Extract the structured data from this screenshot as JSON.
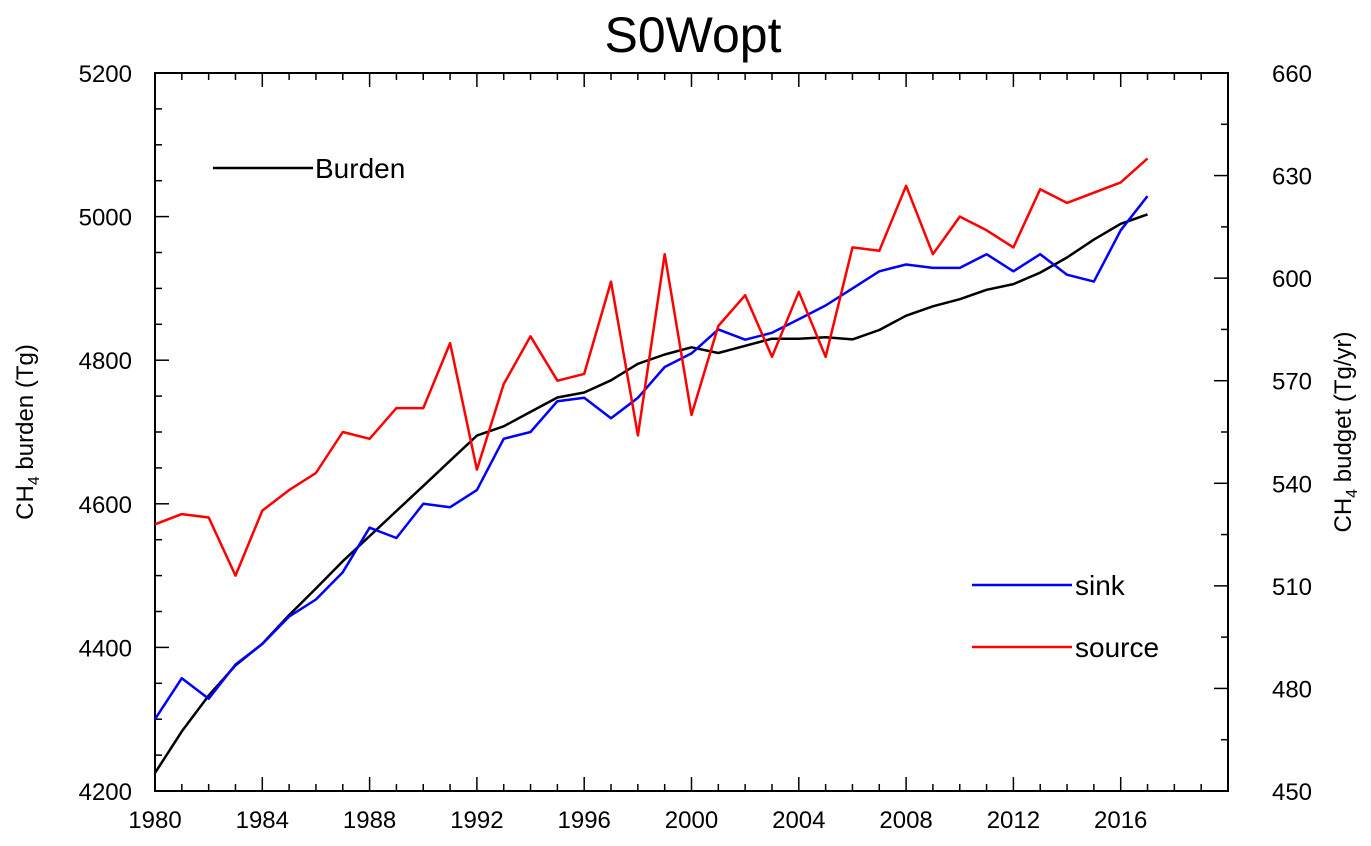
{
  "chart_data": {
    "type": "line",
    "title": "S0Wopt",
    "ylabel_left": {
      "base": "CH",
      "sub": "4",
      "rest": " burden (Tg)"
    },
    "ylabel_right": {
      "base": "CH",
      "sub": "4",
      "rest": " budget (Tg/yr)"
    },
    "xlim": [
      1980,
      2020
    ],
    "x_ticks": [
      1980,
      1984,
      1988,
      1992,
      1996,
      2000,
      2004,
      2008,
      2012,
      2016
    ],
    "ylim_left": [
      4200,
      5200
    ],
    "y_ticks_left": [
      4200,
      4400,
      4600,
      4800,
      5000,
      5200
    ],
    "ylim_right": [
      450,
      660
    ],
    "y_ticks_right": [
      450,
      480,
      510,
      540,
      570,
      600,
      630,
      660
    ],
    "grid": false,
    "legend_placement": [
      "top-left",
      "bottom-right"
    ],
    "x": [
      1980,
      1981,
      1982,
      1983,
      1984,
      1985,
      1986,
      1987,
      1988,
      1989,
      1990,
      1991,
      1992,
      1993,
      1994,
      1995,
      1996,
      1997,
      1998,
      1999,
      2000,
      2001,
      2002,
      2003,
      2004,
      2005,
      2006,
      2007,
      2008,
      2009,
      2010,
      2011,
      2012,
      2013,
      2014,
      2015,
      2016,
      2017
    ],
    "series": [
      {
        "name": "Burden",
        "axis": "left",
        "color": "#000000",
        "values": [
          4225,
          4283,
          4333,
          4375,
          4405,
          4445,
          4482,
          4520,
          4555,
          4590,
          4625,
          4660,
          4695,
          4708,
          4728,
          4748,
          4755,
          4772,
          4795,
          4808,
          4818,
          4810,
          4820,
          4830,
          4830,
          4832,
          4829,
          4842,
          4862,
          4875,
          4885,
          4898,
          4906,
          4922,
          4943,
          4968,
          4990,
          5003
        ]
      },
      {
        "name": "sink",
        "axis": "right",
        "color": "#0000ff",
        "values": [
          471,
          483,
          477,
          487,
          493,
          501,
          506,
          514,
          527,
          524,
          534,
          533,
          538,
          553,
          555,
          564,
          565,
          559,
          565,
          574,
          578,
          585,
          582,
          584,
          588,
          592,
          597,
          602,
          604,
          603,
          603,
          607,
          602,
          607,
          601,
          599,
          614,
          624
        ]
      },
      {
        "name": "source",
        "axis": "right",
        "color": "#ff0000",
        "values": [
          528,
          531,
          530,
          513,
          532,
          538,
          543,
          555,
          553,
          562,
          562,
          581,
          544,
          569,
          583,
          570,
          572,
          599,
          554,
          607,
          560,
          586,
          595,
          577,
          596,
          577,
          609,
          608,
          627,
          607,
          618,
          614,
          609,
          626,
          622,
          625,
          628,
          635
        ]
      }
    ]
  }
}
